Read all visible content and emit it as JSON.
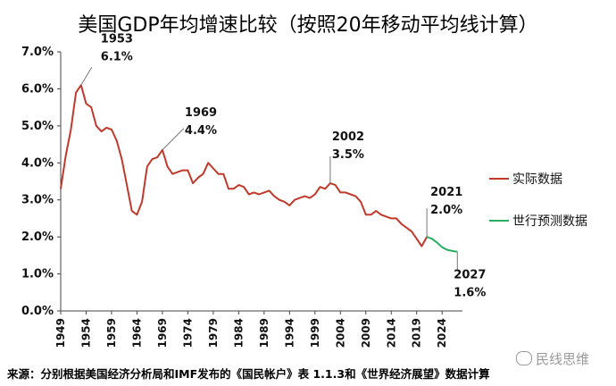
{
  "chart_data": {
    "type": "line",
    "title": "美国GDP年均增速比较（按照20年移动平均线计算）",
    "ylim": [
      0,
      7
    ],
    "y_ticks": [
      "0.0%",
      "1.0%",
      "2.0%",
      "3.0%",
      "4.0%",
      "5.0%",
      "6.0%",
      "7.0%"
    ],
    "xlim": [
      1949,
      2028
    ],
    "x_ticks": [
      "1949",
      "1954",
      "1959",
      "1964",
      "1969",
      "1974",
      "1979",
      "1984",
      "1989",
      "1994",
      "1999",
      "2004",
      "2009",
      "2014",
      "2019",
      "2024"
    ],
    "grid": false,
    "legend_position": "right",
    "series": [
      {
        "name": "实际数据",
        "color": "#c0392b",
        "x": [
          1949,
          1950,
          1951,
          1952,
          1953,
          1954,
          1955,
          1956,
          1957,
          1958,
          1959,
          1960,
          1961,
          1962,
          1963,
          1964,
          1965,
          1966,
          1967,
          1968,
          1969,
          1970,
          1971,
          1972,
          1973,
          1974,
          1975,
          1976,
          1977,
          1978,
          1979,
          1980,
          1981,
          1982,
          1983,
          1984,
          1985,
          1986,
          1987,
          1988,
          1989,
          1990,
          1991,
          1992,
          1993,
          1994,
          1995,
          1996,
          1997,
          1998,
          1999,
          2000,
          2001,
          2002,
          2003,
          2004,
          2005,
          2006,
          2007,
          2008,
          2009,
          2010,
          2011,
          2012,
          2013,
          2014,
          2015,
          2016,
          2017,
          2018,
          2019,
          2020,
          2021
        ],
        "values": [
          3.3,
          4.2,
          4.9,
          5.9,
          6.1,
          5.6,
          5.5,
          5.0,
          4.85,
          4.95,
          4.9,
          4.6,
          4.1,
          3.4,
          2.7,
          2.6,
          2.95,
          3.9,
          4.1,
          4.15,
          4.35,
          3.9,
          3.7,
          3.75,
          3.8,
          3.8,
          3.45,
          3.6,
          3.7,
          4.0,
          3.85,
          3.7,
          3.7,
          3.3,
          3.3,
          3.4,
          3.35,
          3.15,
          3.2,
          3.15,
          3.2,
          3.25,
          3.1,
          3.0,
          2.95,
          2.85,
          3.0,
          3.05,
          3.1,
          3.05,
          3.15,
          3.35,
          3.3,
          3.45,
          3.4,
          3.2,
          3.2,
          3.15,
          3.1,
          2.95,
          2.6,
          2.6,
          2.7,
          2.6,
          2.55,
          2.5,
          2.5,
          2.35,
          2.25,
          2.15,
          1.95,
          1.75,
          2.0
        ]
      },
      {
        "name": "世行预测数据",
        "color": "#27ae60",
        "x": [
          2021,
          2022,
          2023,
          2024,
          2025,
          2026,
          2027
        ],
        "values": [
          2.0,
          1.95,
          1.85,
          1.72,
          1.65,
          1.62,
          1.6
        ]
      }
    ],
    "annotations": [
      {
        "year": "1953",
        "value_label": "6.1%",
        "x": 1953,
        "y": 6.1
      },
      {
        "year": "1969",
        "value_label": "4.4%",
        "x": 1969,
        "y": 4.35
      },
      {
        "year": "2002",
        "value_label": "3.5%",
        "x": 2002,
        "y": 3.45
      },
      {
        "year": "2021",
        "value_label": "2.0%",
        "x": 2021,
        "y": 2.0
      },
      {
        "year": "2027",
        "value_label": "1.6%",
        "x": 2027,
        "y": 1.6
      }
    ]
  },
  "source_note": "来源：分别根据美国经济分析局和IMF发布的《国民帐户》表 1.1.3和《世界经济展望》数据计算",
  "watermark": "民线思维"
}
